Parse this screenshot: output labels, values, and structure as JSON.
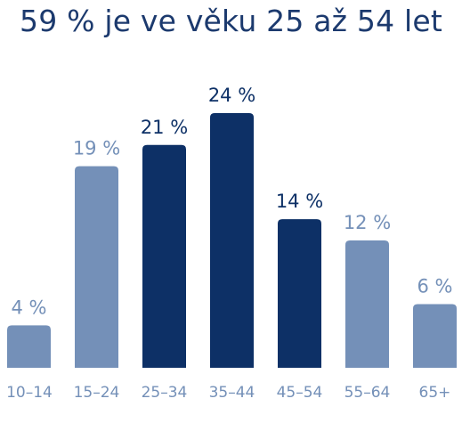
{
  "colors": {
    "highlight": "#0d3066",
    "muted": "#7490b8",
    "title": "#1c3a6e"
  },
  "chart_data": {
    "type": "bar",
    "title": "59 % je ve věku 25 až 54 let",
    "categories": [
      "10–14",
      "15–24",
      "25–34",
      "35–44",
      "45–54",
      "55–64",
      "65+"
    ],
    "values": [
      4,
      19,
      21,
      24,
      14,
      12,
      6
    ],
    "value_labels": [
      "4 %",
      "19 %",
      "21 %",
      "24 %",
      "14 %",
      "12 %",
      "6 %"
    ],
    "highlighted": [
      false,
      false,
      true,
      true,
      true,
      false,
      false
    ],
    "xlabel": "",
    "ylabel": "",
    "ylim": [
      0,
      24
    ],
    "grid": false,
    "legend": "none"
  }
}
